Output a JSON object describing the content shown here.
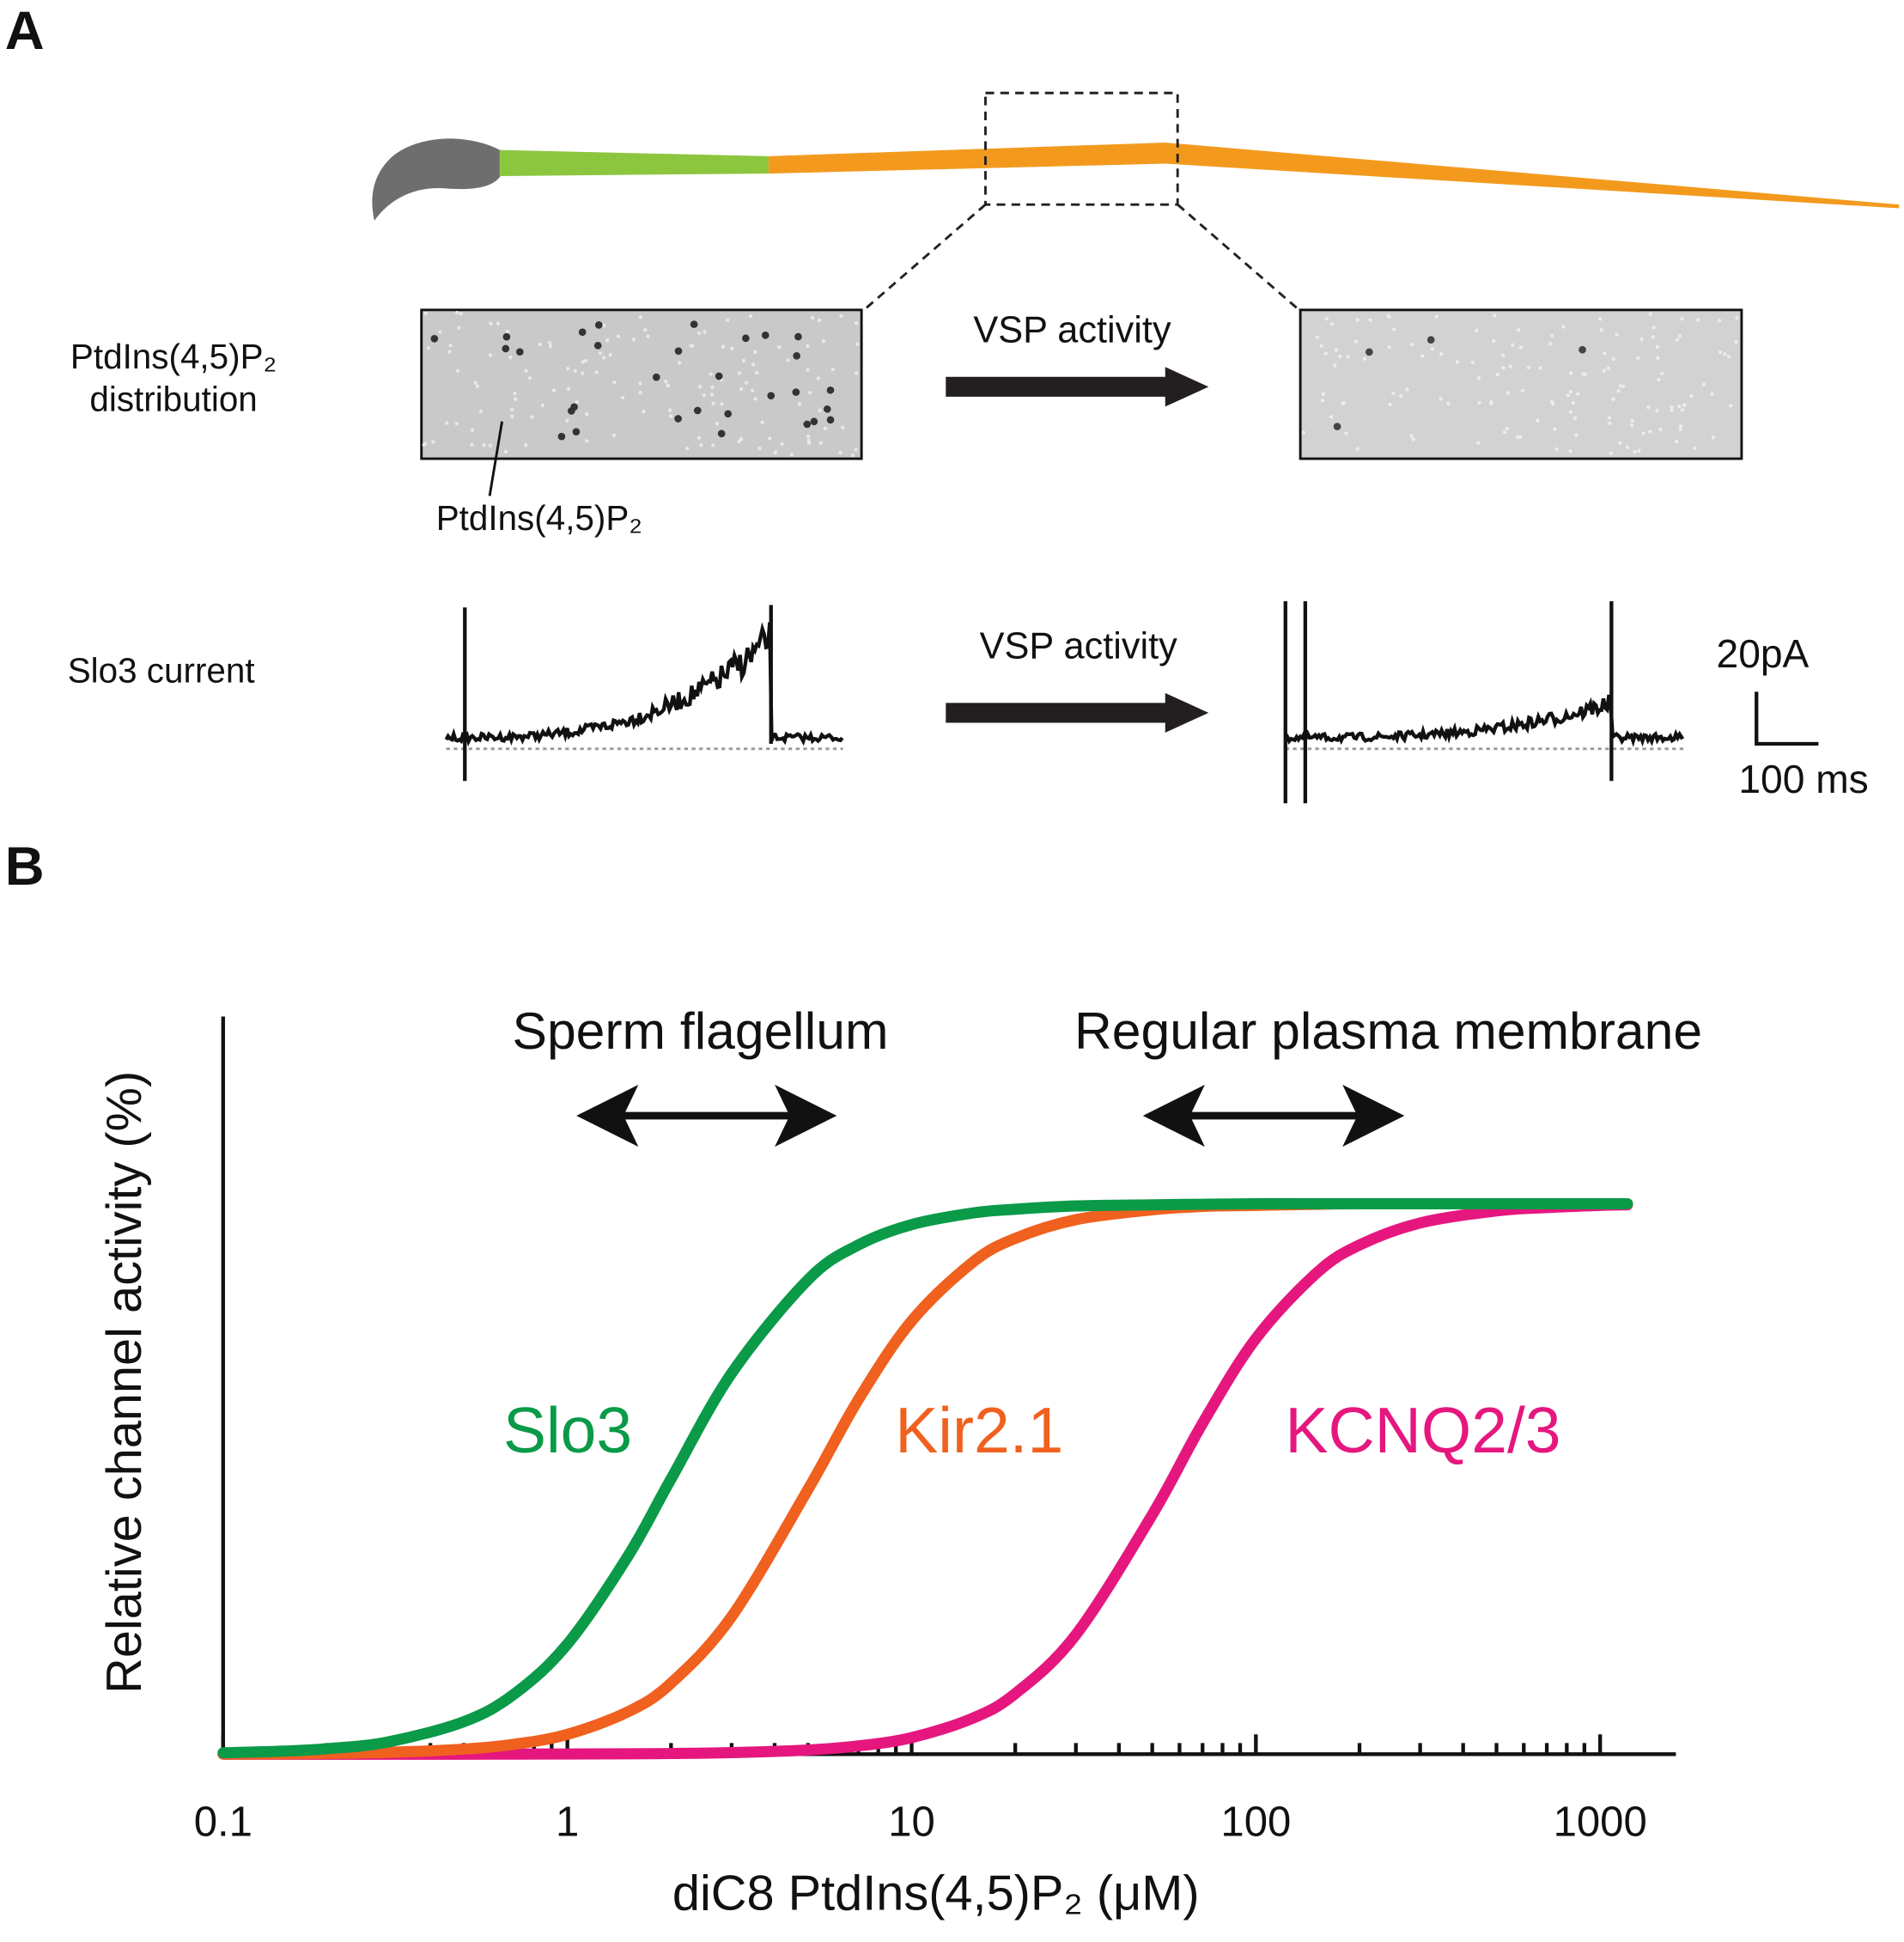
{
  "panel_a": {
    "label": "A",
    "distribution_label": [
      "PtdIns(4,5)P₂",
      "distribution"
    ],
    "particle_label": "PtdIns(4,5)P₂",
    "arrow_label_top": "VSP activity",
    "current_label": "Slo3 current",
    "arrow_label_bottom": "VSP activity",
    "scale_current": "20pA",
    "scale_time": "100 ms"
  },
  "panel_b": {
    "label": "B"
  },
  "chart_data": {
    "type": "line",
    "xlabel": "diC8 PtdIns(4,5)P₂ (μM)",
    "ylabel": "Relative channel activity (%)",
    "annotations": [
      "Sperm flagellum",
      "Regular plasma membrane"
    ],
    "xscale": "log",
    "xlim": [
      0.1,
      1660
    ],
    "ylim": [
      0,
      134
    ],
    "xticks": [
      0.1,
      1,
      10,
      100,
      1000
    ],
    "xminorticks": [
      0.2,
      0.3,
      0.4,
      0.5,
      0.6,
      0.7,
      0.8,
      0.9,
      2,
      3,
      4,
      5,
      6,
      7,
      8,
      9,
      20,
      30,
      40,
      50,
      60,
      70,
      80,
      90,
      200,
      300,
      400,
      500,
      600,
      700,
      800,
      900
    ],
    "x": [
      0.1,
      0.15,
      0.2,
      0.3,
      0.5,
      0.7,
      1,
      1.5,
      2,
      3,
      5,
      7,
      10,
      15,
      20,
      30,
      50,
      70,
      100,
      150,
      200,
      300,
      500,
      700,
      1000,
      1200
    ],
    "series": [
      {
        "name": "Slo3",
        "color": "#0a9a48",
        "values": [
          0.25,
          0.56,
          0.99,
          2.2,
          5.9,
          10.9,
          20,
          36,
          50,
          69.2,
          86.2,
          92.5,
          96.2,
          98.3,
          99,
          99.6,
          99.8,
          99.9,
          100,
          100,
          100,
          100,
          100,
          100,
          100,
          100
        ]
      },
      {
        "name": "Kir2.1",
        "color": "#f0601e",
        "values": [
          0.04,
          0.08,
          0.15,
          0.33,
          0.92,
          1.8,
          3.6,
          7.7,
          12.9,
          25,
          48.1,
          64.4,
          78.7,
          89.3,
          93.7,
          97.1,
          98.9,
          99.5,
          99.7,
          99.9,
          100,
          100,
          100,
          100,
          100,
          100
        ]
      },
      {
        "name": "KCNQ2/3",
        "color": "#e5177f",
        "values": [
          0,
          0,
          0,
          0,
          0,
          0.02,
          0.03,
          0.07,
          0.12,
          0.28,
          0.76,
          1.5,
          3,
          6.5,
          11,
          21.7,
          43.5,
          60.1,
          75.5,
          87.4,
          92.5,
          96.5,
          98.7,
          99.3,
          99.7,
          99.8
        ]
      }
    ]
  }
}
